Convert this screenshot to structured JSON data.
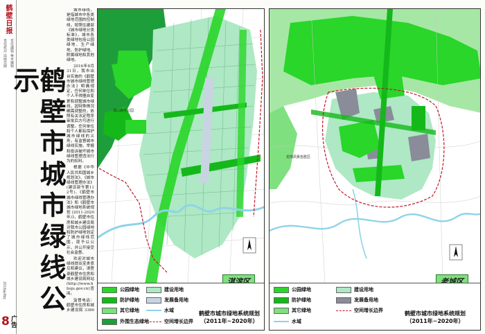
{
  "masthead": {
    "logo": "鹤壁日报",
    "meta_a": "责任编辑 美术编辑",
    "meta_b": "责任校对 出版日期",
    "date_line": "2016年8月",
    "page_number": "8",
    "section": "广告"
  },
  "headline": "鹤壁市城市绿线公示",
  "article": {
    "paragraphs": [
      "城市绿线，是指城市中各类绿地范围的控制线，按照住建部《城市绿地分类标准》，城市各类绿地包括公园绿地、生产绿地、防护绿地、附属绿地和其他绿地。",
      "2016年8月31日，我市出台实施的《鹤壁市城市绿线管理办法》明确规定，任何单位和个人不得擅自变更和调整城市绿线，因特殊情况确需调整的，依照有关法定程序审批后方可进行调整。任何单位和个人都有保护城市绿线的义务，有监督城市绿线实施，举报和投诉破坏城市绿线管理违法行为的权利。",
      "根据《中华人民共和国城乡规划法》、《城市绿线管理办法》(建设部令第112号)、《鹤壁市城市绿线管理办法》和《鹤壁市城市绿地系统规划(2011-2020年)》，鹤壁市住房和城乡建设局对我市公园绿地和防护绿地划定了城市绿线范围，现予以公示，并公开接受社会监督。",
      "欢迎对城市绿线提出宝贵意见和建议，请登录鹤壁市住房和城乡建设局网站(http://www.hbujs.gov.cn)查阅。",
      "监督电话：鹤壁市住房和城乡建设局 3386052"
    ]
  },
  "maps": [
    {
      "id": "left",
      "district": "淇滨区",
      "title_line1": "鹤壁市城市绿地系统规划",
      "title_line2": "（2011年~2020年）",
      "place_label": "淇山森林公园",
      "legend": [
        {
          "label": "公园绿地",
          "color": "#29d629",
          "kind": "fill"
        },
        {
          "label": "建设用地",
          "color": "#aee8c4",
          "kind": "fill"
        },
        {
          "label": "防护绿地",
          "color": "#15b81a",
          "kind": "fill"
        },
        {
          "label": "发展备用地",
          "color": "#c9d4e2",
          "kind": "fill"
        },
        {
          "label": "其它绿地",
          "color": "#7fe07f",
          "kind": "fill"
        },
        {
          "label": "水域",
          "color": "#8fd3e8",
          "kind": "water"
        },
        {
          "label": "外围生态绿地",
          "color": "#1e9e3a",
          "kind": "fill"
        },
        {
          "label": "空间增长边界",
          "color": "#c0152a",
          "kind": "line"
        }
      ]
    },
    {
      "id": "right",
      "district": "老城区",
      "title_line1": "鹤壁市城市绿地系统规划",
      "title_line2": "（2011年~2020年）",
      "place_label": "龙岗风景名胜区",
      "legend": [
        {
          "label": "公园绿地",
          "color": "#29d629",
          "kind": "fill"
        },
        {
          "label": "建设用地",
          "color": "#aee8c4",
          "kind": "fill"
        },
        {
          "label": "防护绿地",
          "color": "#15b81a",
          "kind": "fill"
        },
        {
          "label": "发展备用地",
          "color": "#8a8c99",
          "kind": "fill"
        },
        {
          "label": "其它绿地",
          "color": "#7fe07f",
          "kind": "fill"
        },
        {
          "label": "空间增长边界",
          "color": "#c0152a",
          "kind": "line"
        },
        {
          "label": "水域",
          "color": "#8fd3e8",
          "kind": "water"
        }
      ]
    }
  ]
}
